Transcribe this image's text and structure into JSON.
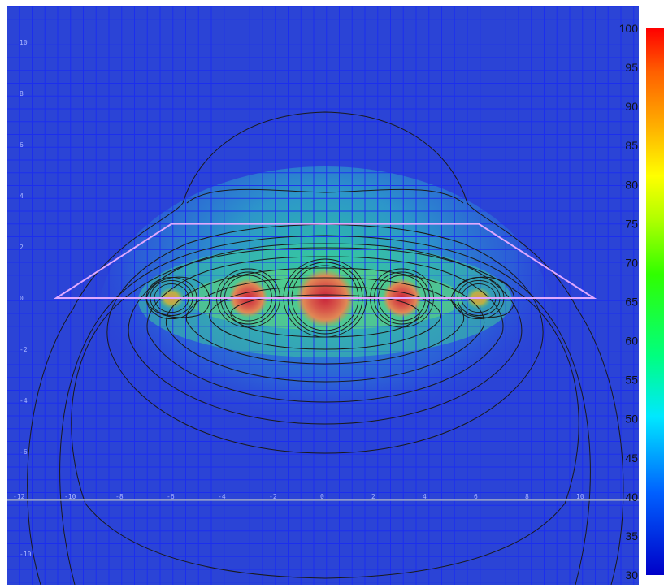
{
  "chart_data": {
    "type": "heatmap",
    "title": "",
    "xlabel": "",
    "ylabel": "",
    "xlim": [
      -12.5,
      13
    ],
    "ylim": [
      -11.5,
      11.3
    ],
    "grid": true,
    "x_tick_labels": [
      "-12",
      "-10",
      "-8",
      "-6",
      "-4",
      "-2",
      "0",
      "2",
      "4",
      "6",
      "8",
      "10"
    ],
    "y_tick_labels": [
      "10",
      "8",
      "6",
      "4",
      "2",
      "0",
      "-2",
      "-4",
      "-6",
      "-10"
    ],
    "sources": [
      {
        "x": -6.0,
        "y": 0,
        "value": 68
      },
      {
        "x": -3.0,
        "y": 0,
        "value": 100
      },
      {
        "x": 0.0,
        "y": 0,
        "value": 100
      },
      {
        "x": 3.0,
        "y": 0,
        "value": 100
      },
      {
        "x": 6.0,
        "y": 0,
        "value": 68
      }
    ],
    "outline_polygon": [
      [
        -10.5,
        0
      ],
      [
        -6.0,
        2.9
      ],
      [
        6.0,
        2.9
      ],
      [
        10.5,
        0
      ]
    ],
    "horizontal_reference_y": -7.9,
    "colorbar": {
      "min": 30,
      "max": 100,
      "colors": [
        "#0000c8",
        "#0060ff",
        "#00e8ff",
        "#00ff80",
        "#30ff00",
        "#b0ff00",
        "#ffff00",
        "#ffb000",
        "#ff6000",
        "#ff0000"
      ],
      "tick_labels": [
        "100",
        "95",
        "90",
        "85",
        "80",
        "75",
        "70",
        "65",
        "60",
        "55",
        "50",
        "45",
        "40",
        "35",
        "30"
      ]
    }
  }
}
